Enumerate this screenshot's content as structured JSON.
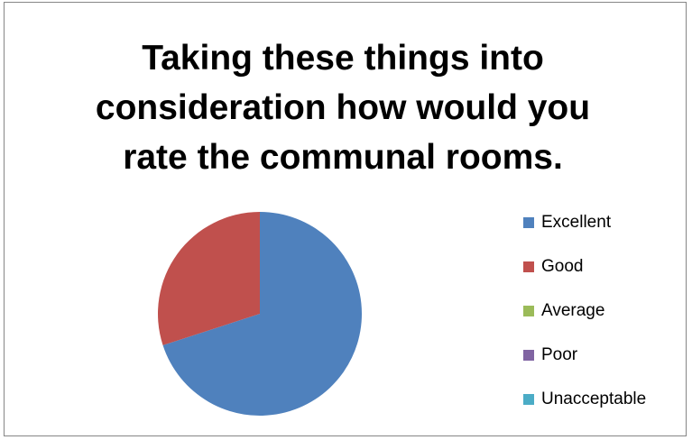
{
  "chart_data": {
    "type": "pie",
    "title": "Taking these things into\nconsideration how would  you\nrate the communal rooms.",
    "slices": [
      {
        "label": "Excellent",
        "value": 70,
        "color": "#4F81BD"
      },
      {
        "label": "Good",
        "value": 30,
        "color": "#C0504D"
      },
      {
        "label": "Average",
        "value": 0,
        "color": "#9BBB59"
      },
      {
        "label": "Poor",
        "value": 0,
        "color": "#8064A2"
      },
      {
        "label": "Unacceptable",
        "value": 0,
        "color": "#4BACC6"
      }
    ],
    "legend_position": "right"
  }
}
